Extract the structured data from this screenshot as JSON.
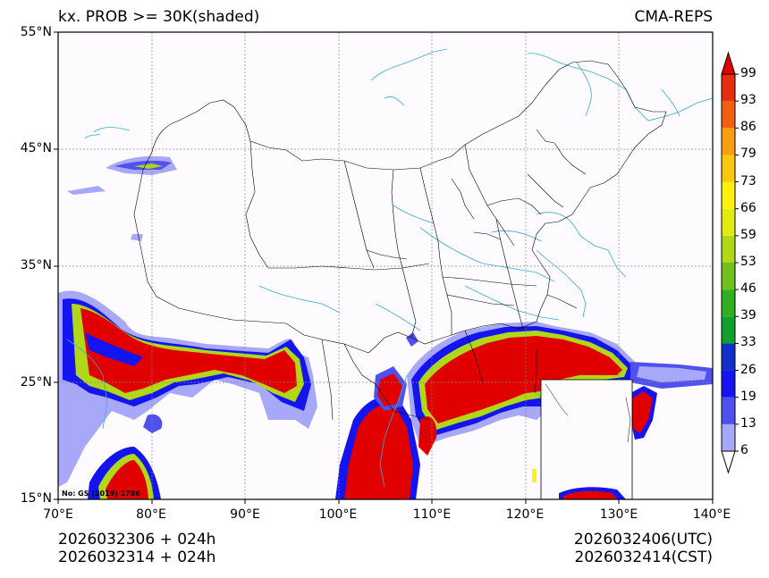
{
  "header": {
    "title_left": "kx. PROB >= 30K(shaded)",
    "title_right": "CMA-REPS"
  },
  "map": {
    "lat_labels": [
      "55°N",
      "45°N",
      "35°N",
      "25°N",
      "15°N"
    ],
    "lon_labels": [
      "70°E",
      "80°E",
      "90°E",
      "100°E",
      "110°E",
      "120°E",
      "130°E",
      "140°E"
    ],
    "review_no": "No: GS (2019) 1786",
    "colors": {
      "ocean": "#fdfbfe",
      "border": "#000000",
      "river": "#3aa9d8",
      "grid": "#888888"
    }
  },
  "colorbar": {
    "levels": [
      "6",
      "13",
      "19",
      "26",
      "33",
      "39",
      "46",
      "53",
      "59",
      "66",
      "73",
      "79",
      "86",
      "93",
      "99"
    ],
    "colors": [
      "#ffffff",
      "#a8a8f8",
      "#5050f0",
      "#1414f0",
      "#1030c8",
      "#10a030",
      "#30b020",
      "#70c020",
      "#b0d818",
      "#e0ec10",
      "#fff010",
      "#f8c810",
      "#f89c10",
      "#f06010",
      "#e82c10",
      "#e00000"
    ]
  },
  "footer": {
    "left_line1": "2026032306  +  024h",
    "left_line2": "2026032314  +  024h",
    "right_line1": "2026032406(UTC)",
    "right_line2": "2026032414(CST)"
  }
}
